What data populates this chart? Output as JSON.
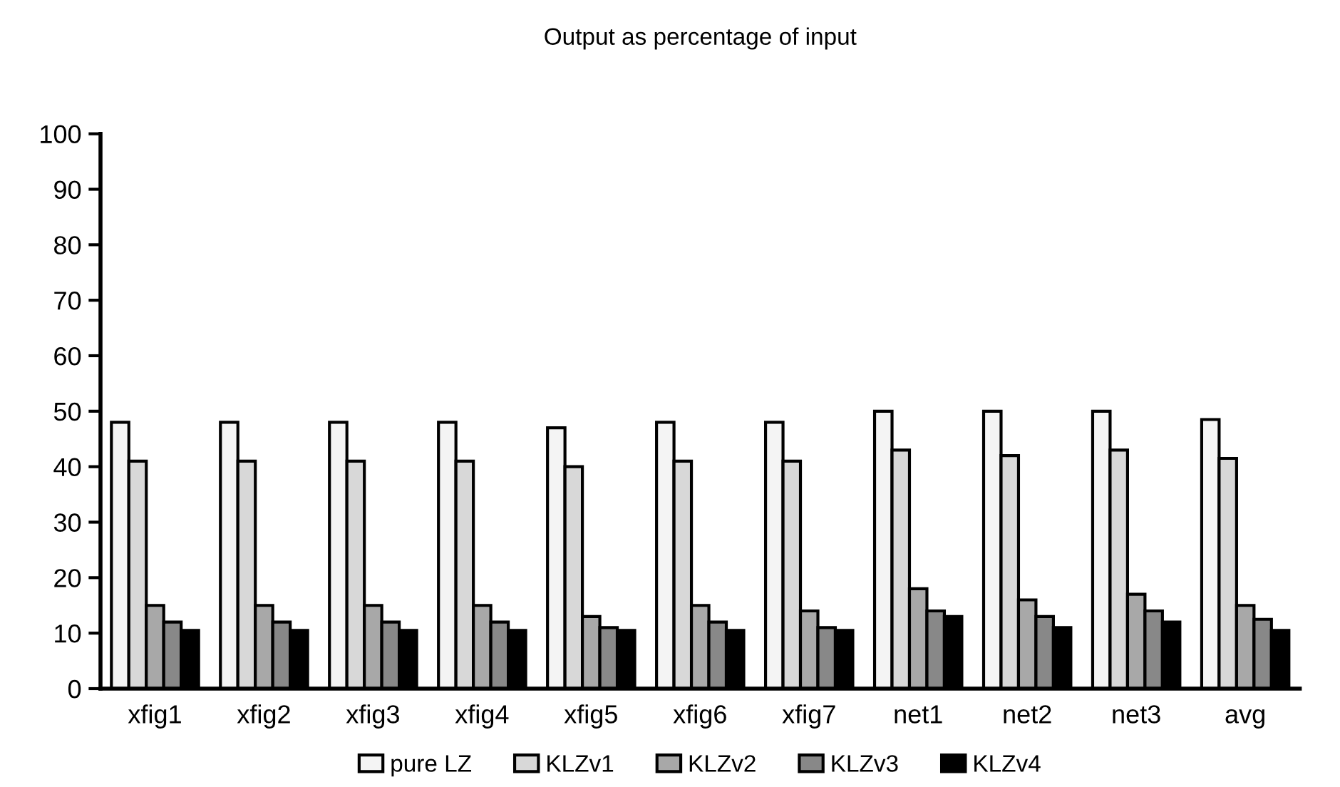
{
  "chart_data": {
    "type": "bar",
    "title": "Output as percentage of input",
    "categories": [
      "xfig1",
      "xfig2",
      "xfig3",
      "xfig4",
      "xfig5",
      "xfig6",
      "xfig7",
      "net1",
      "net2",
      "net3",
      "avg"
    ],
    "series": [
      {
        "name": "pure LZ",
        "color": "#f4f4f4",
        "values": [
          48,
          48,
          48,
          48,
          47,
          48,
          48,
          50,
          50,
          50,
          48.5
        ]
      },
      {
        "name": "KLZv1",
        "color": "#d8d8d8",
        "values": [
          41,
          41,
          41,
          41,
          40,
          41,
          41,
          43,
          42,
          43,
          41.5
        ]
      },
      {
        "name": "KLZv2",
        "color": "#a8a8a8",
        "values": [
          15,
          15,
          15,
          15,
          13,
          15,
          14,
          18,
          16,
          17,
          15
        ]
      },
      {
        "name": "KLZv3",
        "color": "#888888",
        "values": [
          12,
          12,
          12,
          12,
          11,
          12,
          11,
          14,
          13,
          14,
          12.5
        ]
      },
      {
        "name": "KLZv4",
        "color": "#000000",
        "values": [
          10.5,
          10.5,
          10.5,
          10.5,
          10.5,
          10.5,
          10.5,
          13,
          11,
          12,
          10.5
        ]
      }
    ],
    "ylim": [
      0,
      100
    ],
    "yticks": [
      0,
      10,
      20,
      30,
      40,
      50,
      60,
      70,
      80,
      90,
      100
    ],
    "grid": false,
    "legend": "bottom"
  }
}
